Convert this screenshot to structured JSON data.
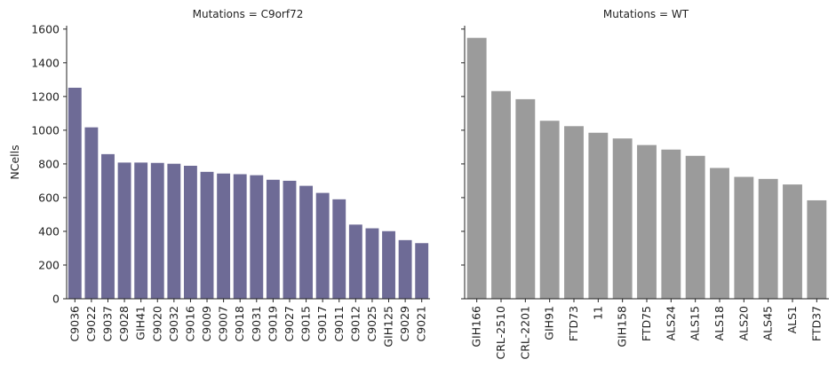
{
  "figure": {
    "ylabel": "NCells",
    "ylim": [
      0,
      1620
    ],
    "yticks": [
      0,
      200,
      400,
      600,
      800,
      1000,
      1200,
      1400,
      1600
    ],
    "shared_y": true
  },
  "chart_data": [
    {
      "type": "bar",
      "title": "Mutations = C9orf72",
      "xlabel": "",
      "ylabel": "NCells",
      "ylim": [
        0,
        1620
      ],
      "color": "#6e6b96",
      "categories": [
        "C9036",
        "C9022",
        "C9037",
        "C9028",
        "GIH41",
        "C9020",
        "C9032",
        "C9016",
        "C9009",
        "C9007",
        "C9018",
        "C9031",
        "C9019",
        "C9027",
        "C9015",
        "C9017",
        "C9011",
        "C9012",
        "C9025",
        "GIH125",
        "C9029",
        "C9021"
      ],
      "values": [
        1252,
        1017,
        858,
        808,
        808,
        806,
        801,
        789,
        753,
        743,
        739,
        733,
        706,
        700,
        670,
        628,
        590,
        440,
        418,
        401,
        348,
        330
      ],
      "grid": false
    },
    {
      "type": "bar",
      "title": "Mutations = WT",
      "xlabel": "",
      "ylabel": "",
      "ylim": [
        0,
        1620
      ],
      "color": "#9b9b9b",
      "categories": [
        "GIH166",
        "CRL-2510",
        "CRL-2201",
        "GIH91",
        "FTD73",
        "11",
        "GIH158",
        "FTD75",
        "ALS24",
        "ALS15",
        "ALS18",
        "ALS20",
        "ALS45",
        "ALS1",
        "FTD37"
      ],
      "values": [
        1548,
        1232,
        1184,
        1056,
        1024,
        985,
        951,
        912,
        885,
        848,
        776,
        723,
        711,
        678,
        584
      ],
      "grid": false
    }
  ]
}
